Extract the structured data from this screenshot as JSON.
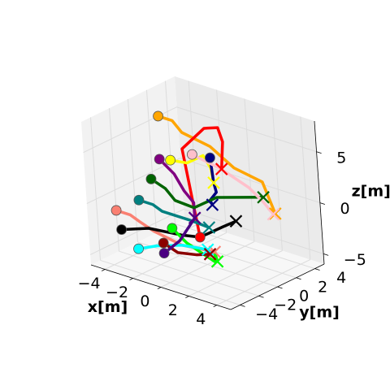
{
  "chart_data": {
    "type": "line3d",
    "xlabel": "x[m]",
    "ylabel": "y[m]",
    "zlabel": "z[m]",
    "xlim": [
      -5,
      5
    ],
    "ylim": [
      -5,
      5
    ],
    "zlim": [
      -6,
      8
    ],
    "xticks": [
      {
        "value": -4,
        "label": "−4"
      },
      {
        "value": -2,
        "label": "−2"
      },
      {
        "value": 0,
        "label": "0"
      },
      {
        "value": 2,
        "label": "2"
      },
      {
        "value": 4,
        "label": "4"
      }
    ],
    "yticks": [
      {
        "value": -4,
        "label": "−4"
      },
      {
        "value": -2,
        "label": "−2"
      },
      {
        "value": 0,
        "label": "0"
      },
      {
        "value": 2,
        "label": "2"
      },
      {
        "value": 4,
        "label": "4"
      }
    ],
    "zticks": [
      {
        "value": -5,
        "label": "−5"
      },
      {
        "value": 0,
        "label": "0"
      },
      {
        "value": 5,
        "label": "5"
      }
    ],
    "grid": true,
    "series": [
      {
        "color": "#ffa500",
        "start_marker": "circle",
        "end_marker": "x",
        "points": [
          [
            -5,
            3,
            5
          ],
          [
            -4,
            3,
            5
          ],
          [
            -3,
            2.5,
            4.5
          ],
          [
            -1,
            2.5,
            4
          ],
          [
            1,
            2,
            3
          ],
          [
            3,
            2,
            2.5
          ],
          [
            4.5,
            1,
            0.5
          ]
        ]
      },
      {
        "color": "#ff0000",
        "start_marker": "circle",
        "end_marker": "x",
        "points": [
          [
            1,
            -2,
            -2
          ],
          [
            0,
            -1,
            0
          ],
          [
            -1,
            0,
            2
          ],
          [
            -2,
            1,
            4
          ],
          [
            -1,
            2,
            6
          ],
          [
            0,
            2,
            6.5
          ],
          [
            1,
            1,
            6
          ],
          [
            1.5,
            0,
            4
          ]
        ]
      },
      {
        "color": "#ffff00",
        "start_marker": "circle",
        "end_marker": "x",
        "points": [
          [
            -1.5,
            -1,
            4
          ],
          [
            -1,
            0,
            3.5
          ],
          [
            -0.5,
            1,
            4
          ],
          [
            0,
            1,
            3
          ],
          [
            0.5,
            0.5,
            2
          ]
        ]
      },
      {
        "color": "#000080",
        "start_marker": "circle",
        "end_marker": "x",
        "points": [
          [
            0,
            1,
            4
          ],
          [
            0.5,
            0.5,
            2
          ],
          [
            1,
            0,
            1.5
          ],
          [
            0.5,
            0,
            0.5
          ],
          [
            1,
            -0.5,
            0.5
          ]
        ]
      },
      {
        "color": "#800080",
        "start_marker": "circle",
        "end_marker": "x",
        "points": [
          [
            -3,
            0,
            3
          ],
          [
            -2,
            0,
            2
          ],
          [
            -1,
            -0.5,
            1
          ],
          [
            0,
            -1,
            0.5
          ],
          [
            0,
            -1,
            -1
          ]
        ]
      },
      {
        "color": "#006400",
        "start_marker": "circle",
        "end_marker": "x",
        "points": [
          [
            -3,
            -1,
            1.5
          ],
          [
            -2,
            -1,
            1
          ],
          [
            -1,
            -1.5,
            0.5
          ],
          [
            0,
            -1,
            0
          ],
          [
            1,
            0,
            1
          ],
          [
            2,
            1,
            1
          ],
          [
            3,
            2,
            1
          ]
        ]
      },
      {
        "color": "#008080",
        "start_marker": "circle",
        "end_marker": "x",
        "points": [
          [
            -4,
            -1,
            -1
          ],
          [
            -3,
            -1,
            -1
          ],
          [
            -2,
            -1.5,
            -1
          ],
          [
            0,
            -1.5,
            -1
          ],
          [
            1,
            -1,
            -1.5
          ]
        ]
      },
      {
        "color": "#fa8072",
        "start_marker": "circle",
        "end_marker": "x",
        "points": [
          [
            -5,
            -2,
            -2
          ],
          [
            -4,
            -2,
            -2
          ],
          [
            -3,
            -2.5,
            -2
          ],
          [
            -2,
            -2.5,
            -2.5
          ],
          [
            0,
            -2.5,
            -3
          ],
          [
            2,
            -2,
            -3
          ]
        ]
      },
      {
        "color": "#000000",
        "start_marker": "circle",
        "end_marker": "x",
        "points": [
          [
            -4,
            -3,
            -3
          ],
          [
            -3,
            -3,
            -2.5
          ],
          [
            -2,
            -3,
            -2
          ],
          [
            0,
            -2.5,
            -2
          ],
          [
            1,
            -2,
            -2
          ],
          [
            2,
            -1,
            -1
          ],
          [
            3,
            -1,
            0
          ]
        ]
      },
      {
        "color": "#00ff00",
        "start_marker": "circle",
        "end_marker": "x",
        "points": [
          [
            -1,
            -2,
            -2
          ],
          [
            0,
            -2,
            -3
          ],
          [
            1,
            -2,
            -3.5
          ],
          [
            2,
            -2,
            -4
          ],
          [
            2,
            -2,
            -3
          ],
          [
            2.5,
            -2.5,
            -3.5
          ]
        ]
      },
      {
        "color": "#00ffff",
        "start_marker": "circle",
        "end_marker": "x",
        "points": [
          [
            -2.5,
            -3.5,
            -4
          ],
          [
            -1.5,
            -3,
            -3.5
          ],
          [
            0,
            -2.5,
            -3
          ],
          [
            1.5,
            -2,
            -3
          ]
        ]
      },
      {
        "color": "#ffc0cb",
        "start_marker": "circle",
        "end_marker": "x",
        "points": [
          [
            -2,
            2,
            3
          ],
          [
            0,
            2,
            2.5
          ],
          [
            2,
            2,
            1.5
          ],
          [
            3,
            2,
            0.5
          ],
          [
            4,
            1.5,
            0
          ]
        ]
      },
      {
        "color": "#8b0000",
        "start_marker": "circle",
        "end_marker": "x",
        "points": [
          [
            -1,
            -3,
            -3
          ],
          [
            0,
            -3,
            -3.5
          ],
          [
            1,
            -2.5,
            -3.5
          ],
          [
            2,
            -2.5,
            -3
          ]
        ]
      },
      {
        "color": "#4b0082",
        "start_marker": "circle",
        "end_marker": "x",
        "points": [
          [
            -1,
            -3,
            -4
          ],
          [
            -0.5,
            -2,
            -3
          ],
          [
            0,
            -1,
            -1
          ]
        ]
      }
    ]
  }
}
